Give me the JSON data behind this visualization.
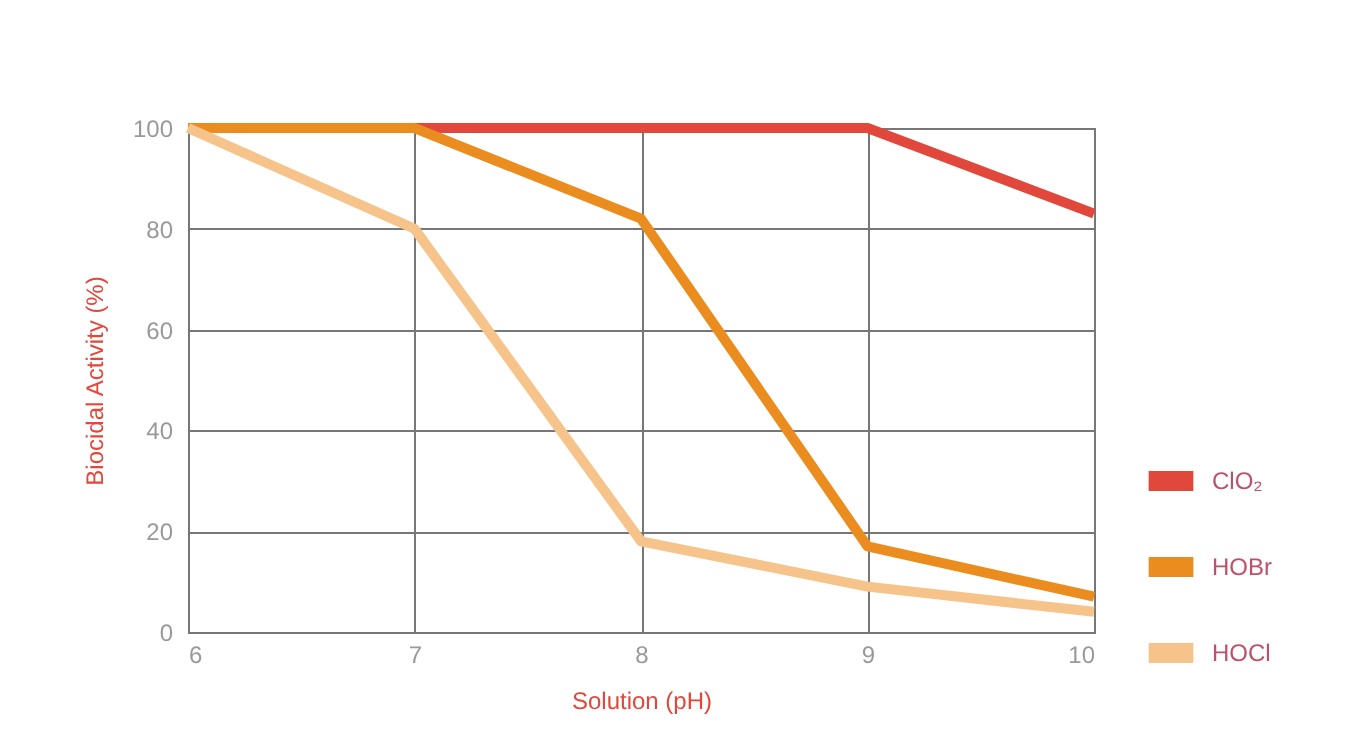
{
  "chart_data": {
    "type": "line",
    "xlabel": "Solution (pH)",
    "ylabel": "Biocidal Activity (%)",
    "x": [
      6,
      7,
      8,
      9,
      10
    ],
    "series": [
      {
        "name": "ClO₂",
        "color": "#e2473b",
        "values": [
          100,
          100,
          100,
          100,
          83
        ]
      },
      {
        "name": "HOBr",
        "color": "#ea8c1e",
        "values": [
          100,
          100,
          82,
          17,
          7
        ]
      },
      {
        "name": "HOCl",
        "color": "#f6c48a",
        "values": [
          100,
          80,
          18,
          9,
          4
        ]
      }
    ],
    "xlim": [
      6,
      10
    ],
    "xticks": [
      6,
      7,
      8,
      9,
      10
    ],
    "ylim": [
      0,
      100
    ],
    "yticks": [
      0,
      20,
      40,
      60,
      80,
      100
    ],
    "grid": true,
    "legend": "right",
    "marker": "none",
    "line_style": "solid"
  }
}
